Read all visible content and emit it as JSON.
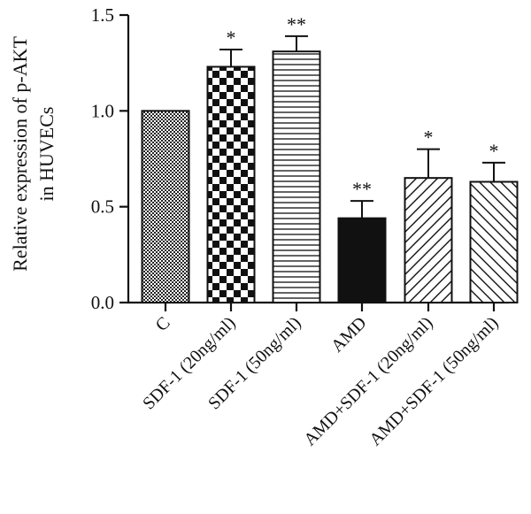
{
  "chart_data": {
    "type": "bar",
    "title": "",
    "xlabel": "",
    "ylabel": [
      "Relative expression of p-AKT",
      "in HUVECs"
    ],
    "ylim": [
      0,
      1.5
    ],
    "yticks": [
      "0.0",
      "0.5",
      "1.0",
      "1.5"
    ],
    "categories": [
      "C",
      "SDF-1 (20ng/ml)",
      "SDF-1 (50ng/ml)",
      "AMD",
      "AMD+SDF-1 (20ng/ml)",
      "AMD+SDF-1 (50ng/ml)"
    ],
    "values": [
      1.0,
      1.23,
      1.31,
      0.44,
      0.65,
      0.63
    ],
    "error": [
      0.0,
      0.09,
      0.08,
      0.09,
      0.15,
      0.1
    ],
    "significance": [
      "",
      "*",
      "**",
      "**",
      "*",
      "*"
    ],
    "patterns": [
      "dots",
      "checker",
      "horizontal-lines",
      "solid-black",
      "diagonal-up",
      "diagonal-down"
    ],
    "grid": false,
    "legend": "none",
    "colors": {
      "axis": "#111111",
      "bar_fill": "#ffffff",
      "solid": "#111111"
    }
  }
}
